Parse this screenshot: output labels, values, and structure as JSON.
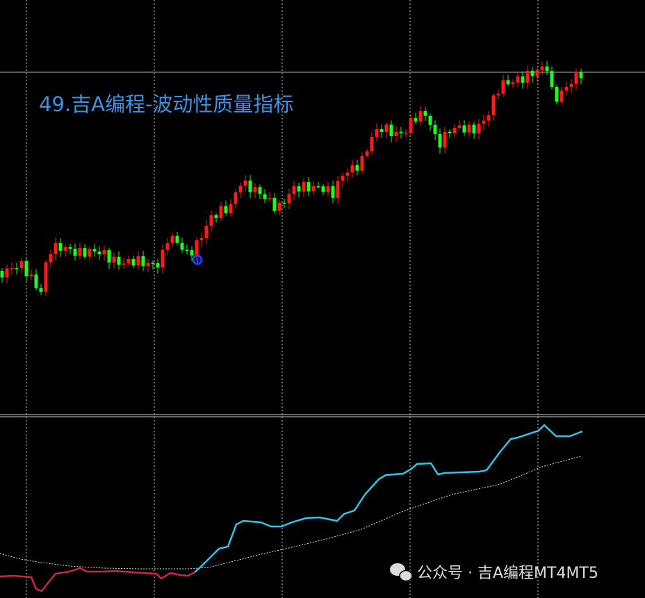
{
  "title": "49.吉A编程-波动性质量指标",
  "watermark": "公众号 · 吉A编程MT4MT5"
}
